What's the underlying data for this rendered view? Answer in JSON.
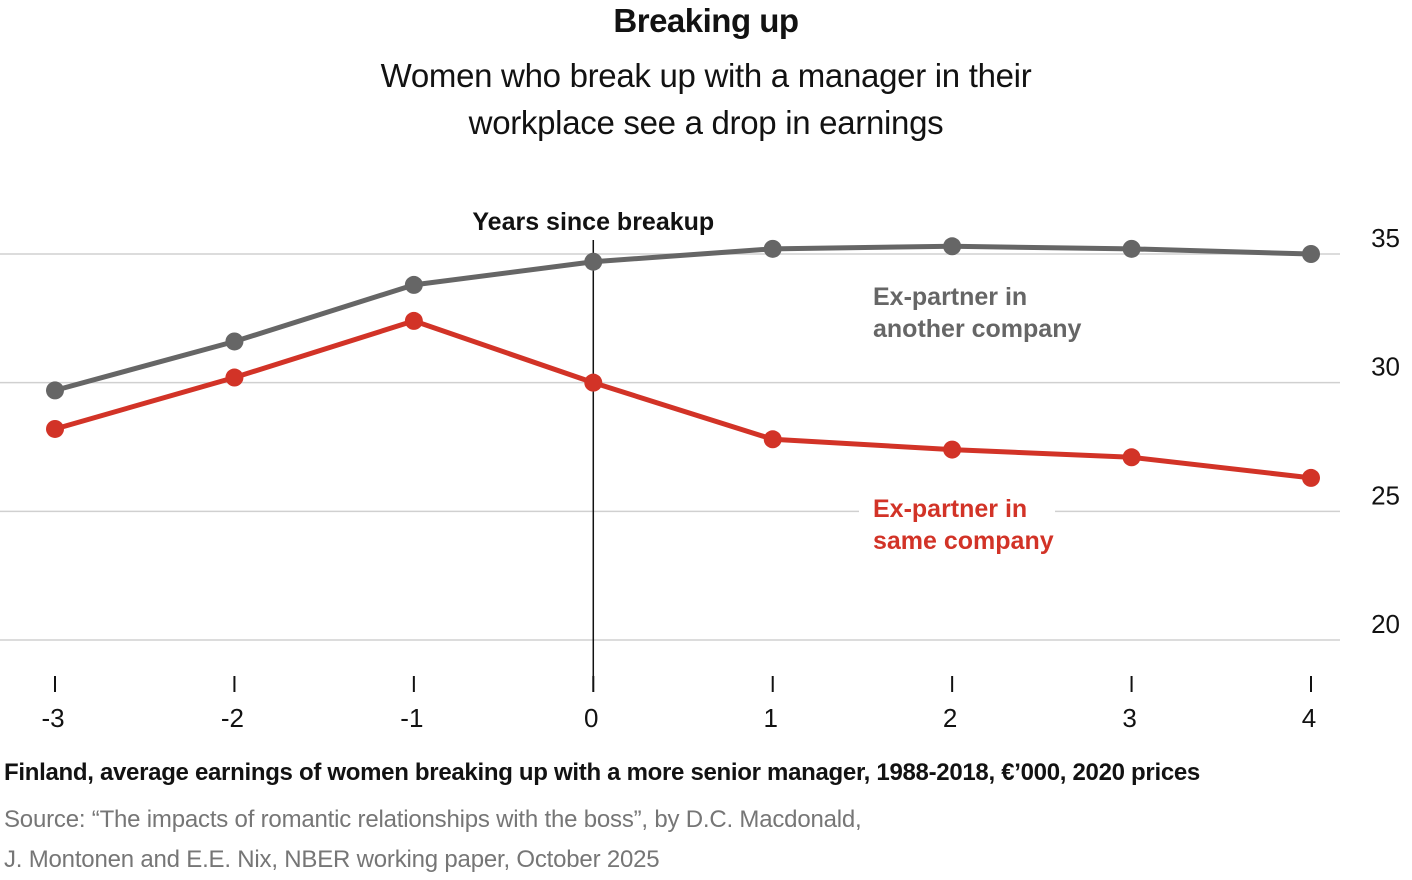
{
  "title": "Breaking up",
  "subtitle": "Women who break up with a manager in their workplace see a drop in earnings",
  "caption": "Finland, average earnings of women breaking up with a more senior manager, 1988-2018, €’000, 2020 prices",
  "source_lines": [
    "Source: “The impacts of romantic relationships with the boss”, by D.C. Macdonald,",
    "J. Montonen and E.E. Nix, NBER working paper, October 2025"
  ],
  "colors": {
    "another_company": "#666666",
    "same_company": "#d23327",
    "gridline": "#d0d0d0",
    "marker_line": "#121212"
  },
  "chart_data": {
    "type": "line",
    "annotation": "Years since breakup",
    "x": [
      -3,
      -2,
      -1,
      0,
      1,
      2,
      3,
      4
    ],
    "x_tick_labels": [
      "-3",
      "-2",
      "-1",
      "0",
      "1",
      "2",
      "3",
      "4"
    ],
    "y_ticks": [
      20,
      25,
      30,
      35
    ],
    "ylim": [
      20,
      35
    ],
    "grid": true,
    "vertical_marker_at_x": 0,
    "series": [
      {
        "name": "Ex-partner in another company",
        "name_lines": [
          "Ex-partner in",
          "another company"
        ],
        "color_key": "another_company",
        "values": [
          29.7,
          31.6,
          33.8,
          34.7,
          35.2,
          35.3,
          35.2,
          35.0
        ]
      },
      {
        "name": "Ex-partner in same company",
        "name_lines": [
          "Ex-partner in",
          "same company"
        ],
        "color_key": "same_company",
        "values": [
          28.2,
          30.2,
          32.4,
          30.0,
          27.8,
          27.4,
          27.1,
          26.3
        ]
      }
    ]
  }
}
